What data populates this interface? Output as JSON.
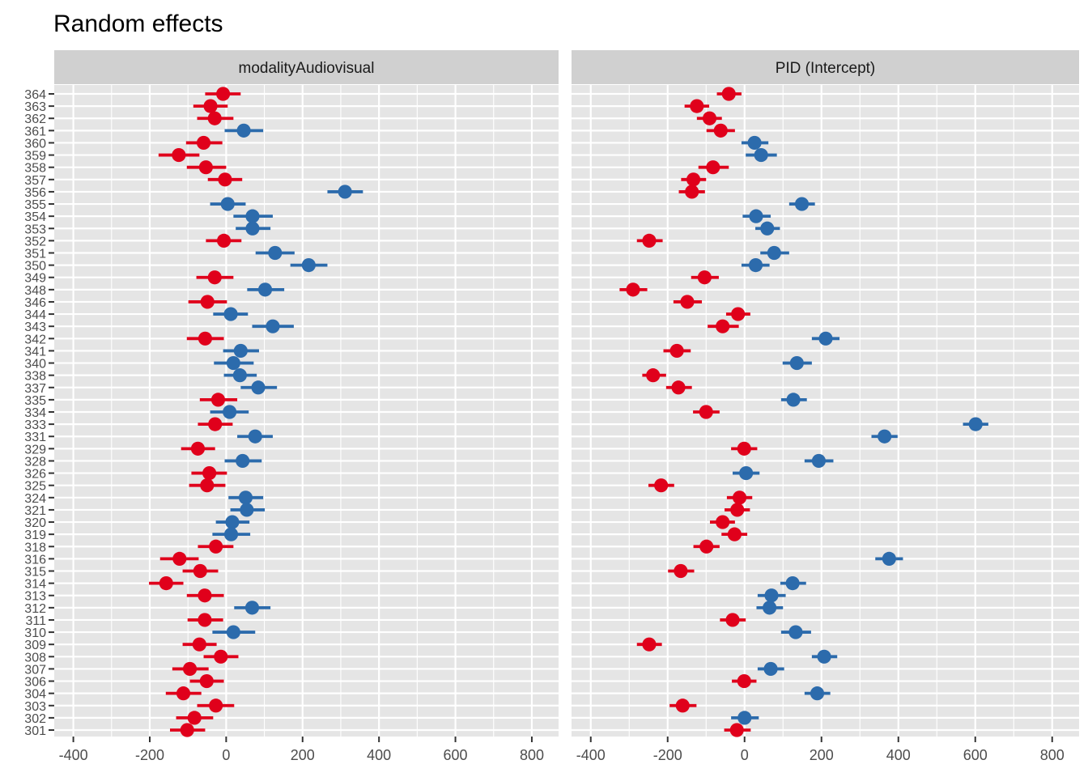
{
  "chart_data": {
    "type": "scatter",
    "subtype": "caterpillar-plot-with-error-bars",
    "title": "Random effects",
    "xlabel": "",
    "ylabel": "",
    "xlim": [
      -450,
      870
    ],
    "x_ticks": [
      -400,
      -200,
      0,
      200,
      400,
      600,
      800
    ],
    "grid": true,
    "legend": "none",
    "colors": {
      "positive": "#2C6BAC",
      "negative": "#E0001B",
      "panel_bg": "#E5E5E5",
      "strip_bg": "#D0D0D0",
      "grid": "#FFFFFF"
    },
    "categories": [
      "364",
      "363",
      "362",
      "361",
      "360",
      "359",
      "358",
      "357",
      "356",
      "355",
      "354",
      "353",
      "352",
      "351",
      "350",
      "349",
      "348",
      "346",
      "344",
      "343",
      "342",
      "341",
      "340",
      "338",
      "337",
      "335",
      "334",
      "333",
      "331",
      "329",
      "328",
      "326",
      "325",
      "324",
      "321",
      "320",
      "319",
      "318",
      "316",
      "315",
      "314",
      "313",
      "312",
      "311",
      "310",
      "309",
      "308",
      "307",
      "306",
      "304",
      "303",
      "302",
      "301"
    ],
    "panels": [
      {
        "name": "modalityAudiovisual",
        "estimate": [
          -8,
          -41,
          -30,
          46,
          -59,
          -124,
          -53,
          -3,
          311,
          4,
          69,
          69,
          -6,
          128,
          216,
          -30,
          102,
          -49,
          12,
          122,
          -55,
          38,
          19,
          36,
          84,
          -21,
          9,
          -29,
          76,
          -74,
          43,
          -44,
          -50,
          51,
          54,
          16,
          13,
          -27,
          -122,
          -68,
          -157,
          -56,
          68,
          -56,
          19,
          -70,
          -14,
          -95,
          -51,
          -112,
          -27,
          -83,
          -102
        ],
        "lower": [
          -55,
          -86,
          -76,
          -4,
          -105,
          -177,
          -103,
          -48,
          265,
          -42,
          19,
          25,
          -53,
          77,
          168,
          -78,
          55,
          -99,
          -34,
          68,
          -103,
          -8,
          -32,
          -6,
          38,
          -69,
          -42,
          -74,
          29,
          -118,
          -4,
          -91,
          -97,
          6,
          11,
          -27,
          -36,
          -74,
          -173,
          -114,
          -202,
          -103,
          21,
          -101,
          -36,
          -114,
          -59,
          -141,
          -95,
          -158,
          -76,
          -131,
          -147
        ],
        "upper": [
          38,
          4,
          19,
          97,
          -10,
          -70,
          0,
          42,
          358,
          51,
          122,
          116,
          40,
          179,
          265,
          19,
          152,
          2,
          57,
          177,
          -6,
          86,
          72,
          80,
          133,
          29,
          59,
          17,
          122,
          -29,
          93,
          2,
          -2,
          97,
          101,
          61,
          63,
          19,
          -72,
          -21,
          -112,
          -6,
          116,
          -8,
          76,
          -25,
          32,
          -46,
          -6,
          -65,
          21,
          -34,
          -55
        ]
      },
      {
        "name": "PID (Intercept)",
        "estimate": [
          -41,
          -124,
          -91,
          -62,
          26,
          43,
          -82,
          -133,
          -137,
          149,
          30,
          59,
          -248,
          77,
          29,
          -104,
          -290,
          -149,
          -17,
          -57,
          211,
          -176,
          136,
          -238,
          -172,
          127,
          -100,
          601,
          364,
          -1,
          193,
          4,
          -217,
          -13,
          -19,
          -57,
          -26,
          -99,
          376,
          -166,
          125,
          70,
          65,
          -31,
          133,
          -248,
          207,
          68,
          -1,
          189,
          -161,
          0,
          -20
        ],
        "lower": [
          -72,
          -156,
          -124,
          -99,
          -8,
          3,
          -120,
          -165,
          -171,
          116,
          -5,
          28,
          -280,
          41,
          -8,
          -139,
          -325,
          -185,
          -48,
          -96,
          175,
          -211,
          99,
          -266,
          -204,
          95,
          -134,
          568,
          330,
          -35,
          156,
          -31,
          -250,
          -46,
          -52,
          -90,
          -60,
          -133,
          340,
          -199,
          93,
          34,
          31,
          -64,
          95,
          -280,
          175,
          34,
          -33,
          156,
          -195,
          -35,
          -53
        ],
        "upper": [
          -8,
          -92,
          -59,
          -25,
          62,
          84,
          -41,
          -100,
          -103,
          183,
          68,
          92,
          -213,
          116,
          65,
          -67,
          -253,
          -111,
          15,
          -15,
          247,
          -140,
          175,
          -204,
          -137,
          162,
          -65,
          634,
          398,
          33,
          231,
          39,
          -183,
          20,
          14,
          -25,
          7,
          -65,
          412,
          -131,
          160,
          107,
          100,
          3,
          173,
          -215,
          241,
          103,
          31,
          223,
          -125,
          37,
          16
        ]
      }
    ]
  }
}
